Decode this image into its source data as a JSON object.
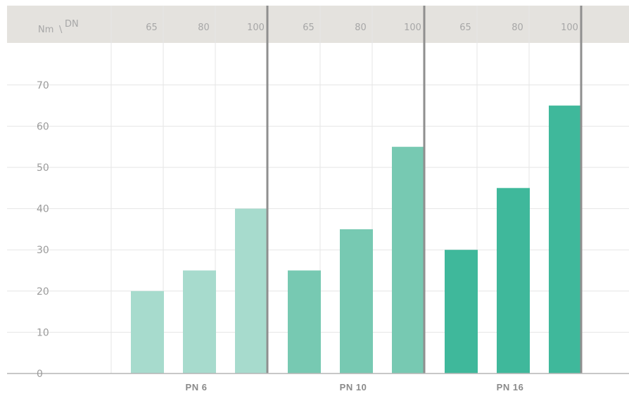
{
  "chart_data": {
    "type": "bar",
    "corner_label_y": "Nm",
    "corner_label_x": "DN",
    "groups": [
      "PN 6",
      "PN 10",
      "PN 16"
    ],
    "categories": [
      "65",
      "80",
      "100"
    ],
    "series": [
      {
        "name": "PN 6",
        "values": [
          20,
          25,
          40
        ],
        "color": "#a7dbcd"
      },
      {
        "name": "PN 10",
        "values": [
          25,
          35,
          55
        ],
        "color": "#77c9b2"
      },
      {
        "name": "PN 16",
        "values": [
          30,
          45,
          65
        ],
        "color": "#3fb89b"
      }
    ],
    "y_ticks": [
      "0",
      "10",
      "20",
      "30",
      "40",
      "50",
      "60",
      "70"
    ],
    "ylim": [
      0,
      80
    ],
    "grid": true
  }
}
